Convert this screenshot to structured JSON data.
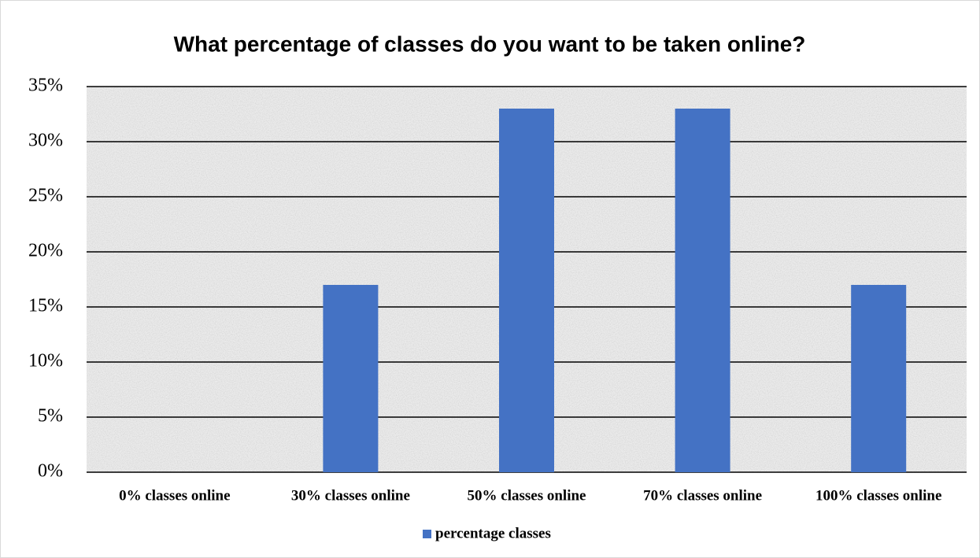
{
  "chart_data": {
    "type": "bar",
    "title": "What percentage of classes do you want to be taken online?",
    "categories": [
      "0% classes online",
      "30% classes online",
      "50% classes online",
      "70% classes online",
      "100% classes online"
    ],
    "series": [
      {
        "name": "percentage classes",
        "color": "#4472c4",
        "values": [
          0,
          17,
          33,
          33,
          17
        ]
      }
    ],
    "ylim": [
      0,
      35
    ],
    "yticks": [
      {
        "value": 0,
        "label": "0%"
      },
      {
        "value": 5,
        "label": "5%"
      },
      {
        "value": 10,
        "label": "10%"
      },
      {
        "value": 15,
        "label": "15%"
      },
      {
        "value": 20,
        "label": "20%"
      },
      {
        "value": 25,
        "label": "25%"
      },
      {
        "value": 30,
        "label": "30%"
      },
      {
        "value": 35,
        "label": "35%"
      }
    ],
    "grid": true,
    "legend": "bottom"
  }
}
